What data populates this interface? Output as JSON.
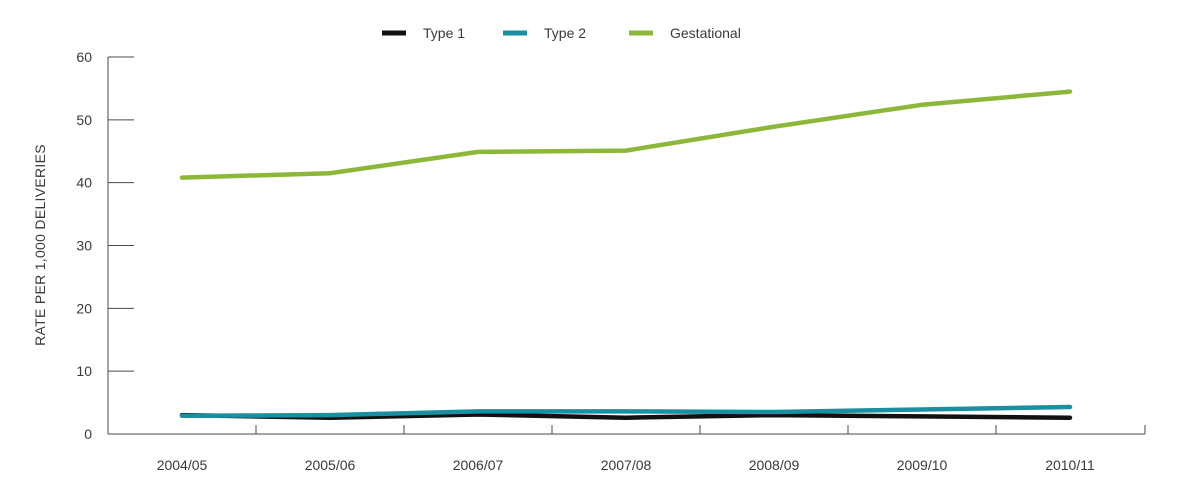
{
  "chart_data": {
    "type": "line",
    "title": "",
    "xlabel": "",
    "ylabel": "RATE PER 1,000 DELIVERIES",
    "ylim": [
      0,
      60
    ],
    "yticks": [
      0,
      10,
      20,
      30,
      40,
      50,
      60
    ],
    "categories": [
      "2004/05",
      "2005/06",
      "2006/07",
      "2007/08",
      "2008/09",
      "2009/10",
      "2010/11"
    ],
    "grid": false,
    "legend_position": "top-center",
    "series": [
      {
        "name": "Type 1",
        "color": "#111111",
        "values": [
          3.0,
          2.6,
          3.1,
          2.6,
          3.0,
          2.8,
          2.6
        ]
      },
      {
        "name": "Type 2",
        "color": "#1a8fa0",
        "values": [
          2.9,
          3.0,
          3.6,
          3.6,
          3.5,
          3.9,
          4.3
        ]
      },
      {
        "name": "Gestational",
        "color": "#8cb83a",
        "values": [
          40.8,
          41.5,
          44.9,
          45.1,
          48.9,
          52.4,
          54.5
        ]
      }
    ]
  }
}
